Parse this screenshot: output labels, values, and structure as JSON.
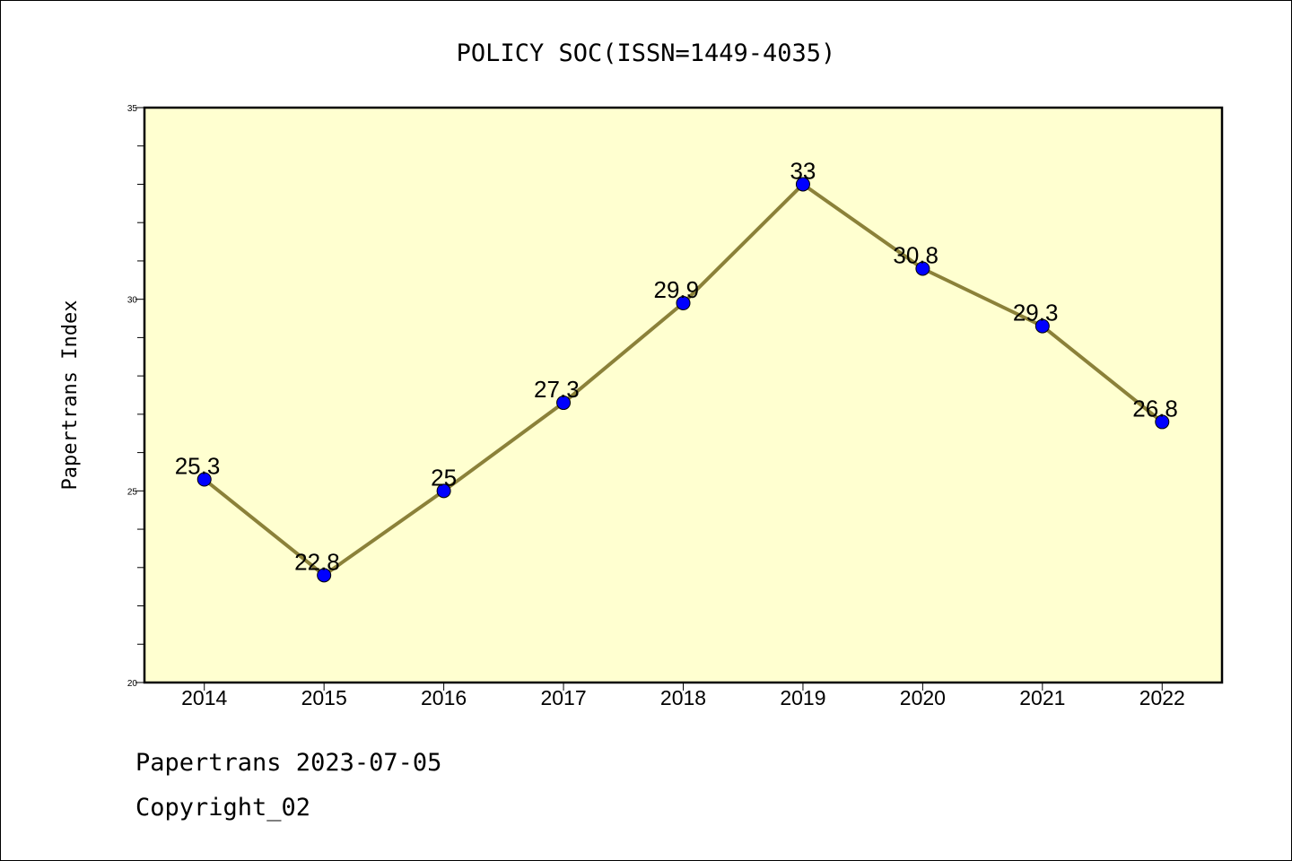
{
  "chart_data": {
    "type": "line",
    "title": "POLICY SOC(ISSN=1449-4035)",
    "xlabel": "",
    "ylabel": "Papertrans Index",
    "categories": [
      "2014",
      "2015",
      "2016",
      "2017",
      "2018",
      "2019",
      "2020",
      "2021",
      "2022"
    ],
    "series": [
      {
        "values": [
          25.3,
          22.8,
          25,
          27.3,
          29.9,
          33,
          30.8,
          29.3,
          26.8
        ],
        "labels": [
          "25.3",
          "22.8",
          "25",
          "27.3",
          "29.9",
          "33",
          "30.8",
          "29.3",
          "26.8"
        ]
      }
    ],
    "ylim": [
      20,
      35
    ],
    "yticks_major": [
      "20",
      "25",
      "30",
      "35"
    ],
    "grid": false,
    "legend": "none",
    "colors": {
      "plot_background": "#ffffd0",
      "line": "#8b8139",
      "marker": "#0000ff"
    }
  },
  "footer": {
    "line1": "Papertrans 2023-07-05",
    "line2": "Copyright_02"
  }
}
